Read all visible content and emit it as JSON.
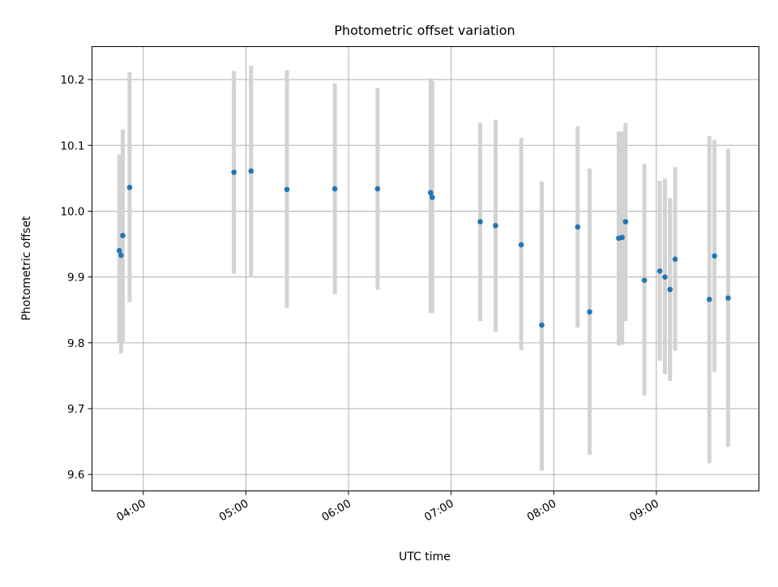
{
  "chart_data": {
    "type": "scatter",
    "title": "Photometric offset variation",
    "xlabel": "UTC time",
    "ylabel": "Photometric offset",
    "xlim": [
      "03:30",
      "10:00"
    ],
    "ylim": [
      9.575,
      10.25
    ],
    "xticks": [
      "04:00",
      "05:00",
      "06:00",
      "07:00",
      "08:00",
      "09:00"
    ],
    "yticks": [
      9.6,
      9.7,
      9.8,
      9.9,
      10.0,
      10.1,
      10.2
    ],
    "ytick_labels": [
      "9.6",
      "9.7",
      "9.8",
      "9.9",
      "10.0",
      "10.1",
      "10.2"
    ],
    "grid": true,
    "colors": {
      "marker": "#1f77b4",
      "errorbar": "#d3d3d3",
      "grid": "#b0b0b0"
    },
    "points": [
      {
        "x": "03:46",
        "y": 9.94,
        "lo": 9.799,
        "hi": 10.086
      },
      {
        "x": "03:47",
        "y": 9.933,
        "lo": 9.784,
        "hi": 10.081
      },
      {
        "x": "03:48",
        "y": 9.963,
        "lo": 9.802,
        "hi": 10.124
      },
      {
        "x": "03:52",
        "y": 10.036,
        "lo": 9.862,
        "hi": 10.211
      },
      {
        "x": "04:53",
        "y": 10.059,
        "lo": 9.905,
        "hi": 10.213
      },
      {
        "x": "05:03",
        "y": 10.061,
        "lo": 9.9,
        "hi": 10.221
      },
      {
        "x": "05:24",
        "y": 10.033,
        "lo": 9.853,
        "hi": 10.214
      },
      {
        "x": "05:52",
        "y": 10.034,
        "lo": 9.874,
        "hi": 10.194
      },
      {
        "x": "06:17",
        "y": 10.034,
        "lo": 9.881,
        "hi": 10.187
      },
      {
        "x": "06:48",
        "y": 10.028,
        "lo": 9.845,
        "hi": 10.202
      },
      {
        "x": "06:49",
        "y": 10.021,
        "lo": 9.845,
        "hi": 10.198
      },
      {
        "x": "07:17",
        "y": 9.984,
        "lo": 9.833,
        "hi": 10.134
      },
      {
        "x": "07:26",
        "y": 9.978,
        "lo": 9.817,
        "hi": 10.139
      },
      {
        "x": "07:41",
        "y": 9.949,
        "lo": 9.789,
        "hi": 10.111
      },
      {
        "x": "07:53",
        "y": 9.827,
        "lo": 9.606,
        "hi": 10.045
      },
      {
        "x": "08:14",
        "y": 9.976,
        "lo": 9.823,
        "hi": 10.129
      },
      {
        "x": "08:21",
        "y": 9.847,
        "lo": 9.63,
        "hi": 10.065
      },
      {
        "x": "08:38",
        "y": 9.959,
        "lo": 9.796,
        "hi": 10.121
      },
      {
        "x": "08:40",
        "y": 9.96,
        "lo": 9.797,
        "hi": 10.121
      },
      {
        "x": "08:42",
        "y": 9.984,
        "lo": 9.833,
        "hi": 10.134
      },
      {
        "x": "08:53",
        "y": 9.895,
        "lo": 9.72,
        "hi": 10.072
      },
      {
        "x": "09:02",
        "y": 9.909,
        "lo": 9.773,
        "hi": 10.046
      },
      {
        "x": "09:05",
        "y": 9.9,
        "lo": 9.753,
        "hi": 10.049
      },
      {
        "x": "09:08",
        "y": 9.881,
        "lo": 9.742,
        "hi": 10.02
      },
      {
        "x": "09:11",
        "y": 9.927,
        "lo": 9.788,
        "hi": 10.067
      },
      {
        "x": "09:31",
        "y": 9.866,
        "lo": 9.617,
        "hi": 10.114
      },
      {
        "x": "09:34",
        "y": 9.932,
        "lo": 9.756,
        "hi": 10.108
      },
      {
        "x": "09:42",
        "y": 9.868,
        "lo": 9.642,
        "hi": 10.095
      }
    ]
  }
}
